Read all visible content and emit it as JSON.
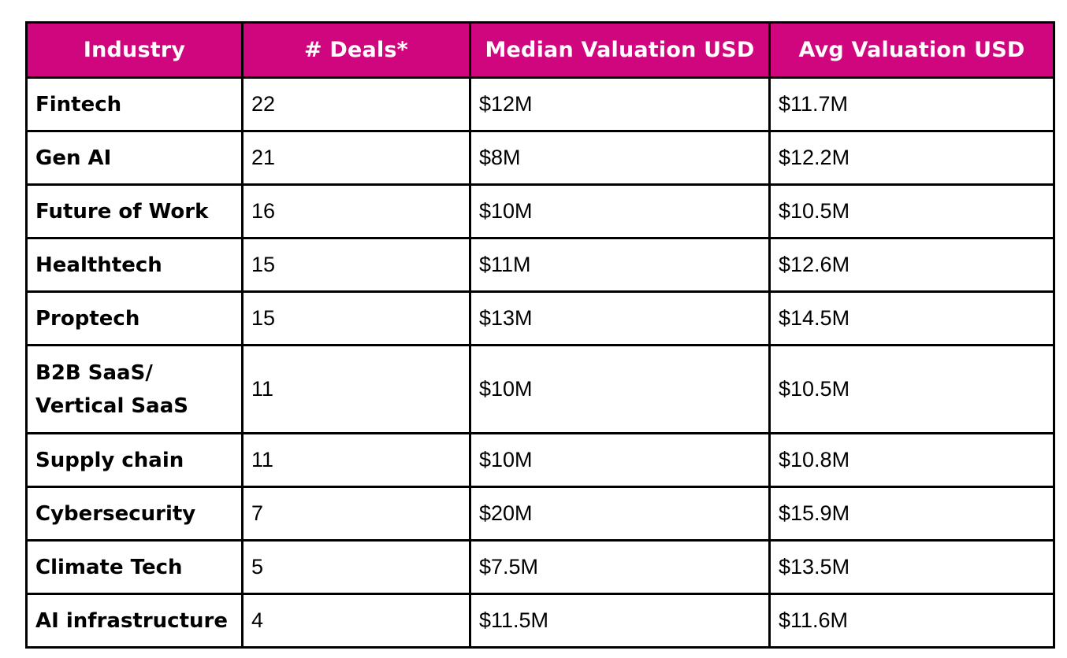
{
  "header_color": "#D0067E",
  "chart_data": {
    "type": "table",
    "columns": [
      "Industry",
      "# Deals*",
      "Median Valuation USD",
      "Avg Valuation USD"
    ],
    "rows": [
      [
        "Fintech",
        "22",
        "$12M",
        "$11.7M"
      ],
      [
        "Gen AI",
        "21",
        "$8M",
        "$12.2M"
      ],
      [
        "Future of Work",
        "16",
        "$10M",
        "$10.5M"
      ],
      [
        "Healthtech",
        "15",
        "$11M",
        "$12.6M"
      ],
      [
        "Proptech",
        "15",
        "$13M",
        "$14.5M"
      ],
      [
        "B2B SaaS/ Vertical SaaS",
        "11",
        "$10M",
        "$10.5M"
      ],
      [
        "Supply chain",
        "11",
        "$10M",
        "$10.8M"
      ],
      [
        "Cybersecurity",
        "7",
        "$20M",
        "$15.9M"
      ],
      [
        "Climate Tech",
        "5",
        "$7.5M",
        "$13.5M"
      ],
      [
        "AI infrastructure",
        "4",
        "$11.5M",
        "$11.6M"
      ]
    ]
  }
}
